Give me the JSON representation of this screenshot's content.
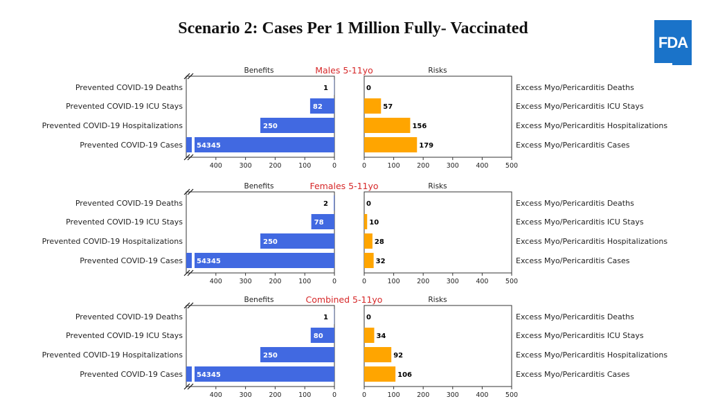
{
  "title": "Scenario 2: Cases Per 1 Million Fully- Vaccinated",
  "logo": {
    "text": "FDA",
    "color": "#1a73c9"
  },
  "colors": {
    "benefit": "#4169e1",
    "risk": "#ffa500",
    "panel_title": "#d62728"
  },
  "chart_data": [
    {
      "type": "bar",
      "title": "Males 5-11yo",
      "benefits_label": "Benefits",
      "risks_label": "Risks",
      "benefit_categories": [
        "Prevented COVID-19 Deaths",
        "Prevented COVID-19 ICU Stays",
        "Prevented COVID-19 Hospitalizations",
        "Prevented COVID-19 Cases"
      ],
      "risk_categories": [
        "Excess Myo/Pericarditis Deaths",
        "Excess Myo/Pericarditis ICU Stays",
        "Excess Myo/Pericarditis Hospitalizations",
        "Excess Myo/Pericarditis Cases"
      ],
      "benefit_values": [
        1,
        82,
        250,
        54345
      ],
      "risk_values": [
        0,
        57,
        156,
        179
      ],
      "benefit_ticks": [
        "400",
        "300",
        "200",
        "100",
        "0"
      ],
      "risk_ticks": [
        "0",
        "100",
        "200",
        "300",
        "400",
        "500"
      ],
      "xlim": [
        0,
        500
      ],
      "axis_break": true
    },
    {
      "type": "bar",
      "title": "Females 5-11yo",
      "benefits_label": "Benefits",
      "risks_label": "Risks",
      "benefit_categories": [
        "Prevented COVID-19 Deaths",
        "Prevented COVID-19 ICU Stays",
        "Prevented COVID-19 Hospitalizations",
        "Prevented COVID-19 Cases"
      ],
      "risk_categories": [
        "Excess Myo/Pericarditis Deaths",
        "Excess Myo/Pericarditis ICU Stays",
        "Excess Myo/Pericarditis Hospitalizations",
        "Excess Myo/Pericarditis Cases"
      ],
      "benefit_values": [
        2,
        78,
        250,
        54345
      ],
      "risk_values": [
        0,
        10,
        28,
        32
      ],
      "benefit_ticks": [
        "400",
        "300",
        "200",
        "100",
        "0"
      ],
      "risk_ticks": [
        "0",
        "100",
        "200",
        "300",
        "400",
        "500"
      ],
      "xlim": [
        0,
        500
      ],
      "axis_break": true
    },
    {
      "type": "bar",
      "title": "Combined 5-11yo",
      "benefits_label": "Benefits",
      "risks_label": "Risks",
      "benefit_categories": [
        "Prevented COVID-19 Deaths",
        "Prevented COVID-19 ICU Stays",
        "Prevented COVID-19 Hospitalizations",
        "Prevented COVID-19 Cases"
      ],
      "risk_categories": [
        "Excess Myo/Pericarditis Deaths",
        "Excess Myo/Pericarditis ICU Stays",
        "Excess Myo/Pericarditis Hospitalizations",
        "Excess Myo/Pericarditis Cases"
      ],
      "benefit_values": [
        1,
        80,
        250,
        54345
      ],
      "risk_values": [
        0,
        34,
        92,
        106
      ],
      "benefit_ticks": [
        "400",
        "300",
        "200",
        "100",
        "0"
      ],
      "risk_ticks": [
        "0",
        "100",
        "200",
        "300",
        "400",
        "500"
      ],
      "xlim": [
        0,
        500
      ],
      "axis_break": true
    }
  ]
}
